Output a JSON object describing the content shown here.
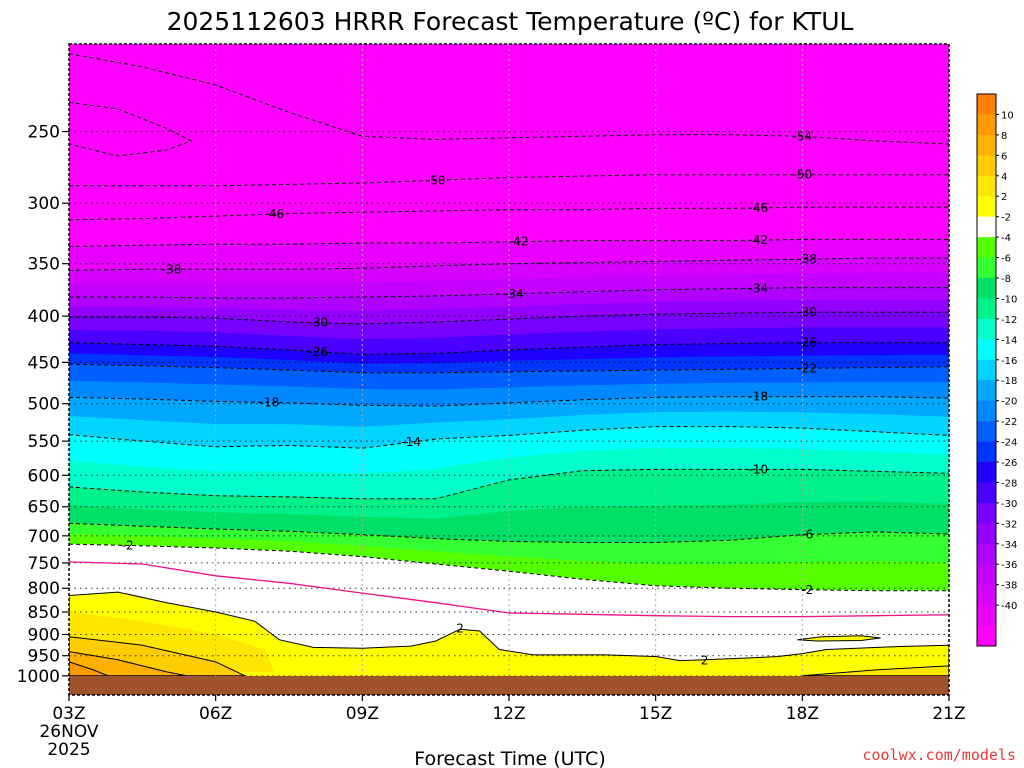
{
  "colors": {
    "m40": "#ff00ff",
    "m38": "#e800ff",
    "m36": "#d600ff",
    "m34": "#c400ff",
    "m32": "#b000ff",
    "m30": "#9400ff",
    "m28": "#7800ff",
    "m26": "#4a00ff",
    "m24": "#1e00ff",
    "m22": "#0034ff",
    "m20": "#0060ff",
    "m18": "#0088ff",
    "m16": "#00a8ff",
    "m14": "#00d4ff",
    "m12": "#00ffff",
    "m10": "#00ffcc",
    "m8": "#00f08a",
    "m6": "#00e066",
    "m4": "#33ff33",
    "m2": "#55ff00",
    "zero": "#ffffff",
    "p2": "#ffff00",
    "p4": "#ffe600",
    "p6": "#ffcc00",
    "p8": "#ffb000",
    "p10": "#ff9a00",
    "p12": "#ff8000",
    "ground": "#a0522d",
    "freezing": "#ee1188",
    "credit": "#e43b3b"
  },
  "chart_data": {
    "type": "heatmap",
    "title": "2025112603 HRRR Forecast Temperature (ºC) for KTUL",
    "xlabel": "Forecast Time (UTC)",
    "ylabel": "",
    "credit": "coolwx.com/models",
    "x_ticks": [
      "03Z",
      "06Z",
      "09Z",
      "12Z",
      "15Z",
      "18Z",
      "21Z"
    ],
    "x_subticks": [
      "26NOV",
      "2025"
    ],
    "x_hours": [
      3,
      6,
      9,
      12,
      15,
      18,
      21
    ],
    "xlim": [
      3,
      21
    ],
    "y_levels": [
      "250",
      "300",
      "350",
      "400",
      "450",
      "500",
      "550",
      "600",
      "650",
      "700",
      "750",
      "800",
      "850",
      "900",
      "950",
      "1000"
    ],
    "y_values": [
      250,
      300,
      350,
      400,
      450,
      500,
      550,
      600,
      650,
      700,
      750,
      800,
      850,
      900,
      950,
      1000
    ],
    "ylim": [
      200,
      1050
    ],
    "y_scale": "log",
    "colorbar_labels": [
      "10",
      "8",
      "6",
      "4",
      "2",
      "-2",
      "-4",
      "-6",
      "-8",
      "-10",
      "-12",
      "-14",
      "-16",
      "-18",
      "-20",
      "-22",
      "-24",
      "-26",
      "-28",
      "-30",
      "-32",
      "-34",
      "-36",
      "-38",
      "-40"
    ],
    "colorbar_keys": [
      "p12",
      "p10",
      "p8",
      "p6",
      "p4",
      "p2",
      "zero",
      "m2",
      "m4",
      "m6",
      "m8",
      "m10",
      "m12",
      "m14",
      "m16",
      "m18",
      "m20",
      "m22",
      "m24",
      "m26",
      "m28",
      "m30",
      "m32",
      "m34",
      "m36",
      "m38",
      "m40"
    ],
    "time_hours": [
      3,
      4.5,
      6,
      7.5,
      9,
      10.5,
      12,
      13.5,
      15,
      16.5,
      18,
      19.5,
      21
    ],
    "isotherms": [
      {
        "t": -54,
        "p": [
          205,
          212,
          222,
          238,
          253,
          255,
          254,
          253,
          252,
          252,
          253,
          256,
          258
        ],
        "labels": [
          {
            "x": 18,
            "text": "-54"
          }
        ]
      },
      {
        "t": -50,
        "p": [
          287,
          287,
          287,
          286,
          285,
          283,
          281,
          280,
          279,
          279,
          279,
          279,
          279
        ],
        "labels": [
          {
            "x": 10.5,
            "text": "-50"
          },
          {
            "x": 18,
            "text": "-50"
          }
        ]
      },
      {
        "t": -46,
        "p": [
          313,
          312,
          310,
          308,
          307,
          306,
          305,
          305,
          304,
          304,
          303,
          303,
          303
        ],
        "labels": [
          {
            "x": 7.2,
            "text": "-46"
          },
          {
            "x": 17.1,
            "text": "-46"
          }
        ]
      },
      {
        "t": -42,
        "p": [
          335,
          334,
          333,
          333,
          332,
          332,
          331,
          330,
          330,
          330,
          329,
          329,
          329
        ],
        "labels": [
          {
            "x": 12.2,
            "text": "-42"
          },
          {
            "x": 17.1,
            "text": "-42"
          }
        ]
      },
      {
        "t": -38,
        "p": [
          356,
          355,
          355,
          355,
          354,
          352,
          350,
          349,
          348,
          347,
          346,
          345,
          345
        ],
        "labels": [
          {
            "x": 5.1,
            "text": "-38"
          },
          {
            "x": 18.1,
            "text": "-38"
          }
        ]
      },
      {
        "t": -34,
        "p": [
          381,
          381,
          382,
          382,
          381,
          380,
          378,
          376,
          374,
          373,
          372,
          372,
          372
        ],
        "labels": [
          {
            "x": 12.1,
            "text": "-34"
          },
          {
            "x": 17.1,
            "text": "-34"
          }
        ]
      },
      {
        "t": -30,
        "p": [
          401,
          401,
          402,
          406,
          408,
          406,
          403,
          400,
          398,
          397,
          396,
          396,
          396
        ],
        "labels": [
          {
            "x": 8.1,
            "text": "-30"
          },
          {
            "x": 18.1,
            "text": "-30"
          }
        ]
      },
      {
        "t": -26,
        "p": [
          428,
          430,
          432,
          436,
          441,
          440,
          436,
          433,
          430,
          429,
          428,
          428,
          428
        ],
        "labels": [
          {
            "x": 8.1,
            "text": "-26"
          },
          {
            "x": 18.1,
            "text": "-26"
          }
        ]
      },
      {
        "t": -22,
        "p": [
          452,
          454,
          456,
          459,
          462,
          462,
          461,
          460,
          459,
          458,
          457,
          456,
          455
        ],
        "labels": [
          {
            "x": 18.1,
            "text": "-22"
          }
        ]
      },
      {
        "t": -18,
        "p": [
          492,
          494,
          497,
          499,
          502,
          503,
          499,
          495,
          492,
          491,
          491,
          491,
          493
        ],
        "labels": [
          {
            "x": 7.1,
            "text": "-18"
          },
          {
            "x": 17.1,
            "text": "-18"
          }
        ]
      },
      {
        "t": -14,
        "p": [
          541,
          550,
          558,
          556,
          560,
          547,
          542,
          535,
          530,
          530,
          532,
          537,
          542
        ],
        "labels": [
          {
            "x": 10,
            "text": "-14"
          }
        ]
      },
      {
        "t": -10,
        "p": [
          618,
          626,
          632,
          634,
          637,
          637,
          607,
          593,
          591,
          591,
          591,
          594,
          597
        ],
        "labels": [
          {
            "x": 17.1,
            "text": "-10"
          }
        ]
      },
      {
        "t": -6,
        "p": [
          678,
          683,
          688,
          692,
          698,
          705,
          710,
          712,
          712,
          708,
          698,
          693,
          697
        ],
        "labels": [
          {
            "x": 18.1,
            "text": "-6"
          }
        ]
      },
      {
        "t": -2,
        "p": [
          715,
          718,
          722,
          728,
          738,
          752,
          766,
          782,
          795,
          800,
          803,
          805,
          805
        ],
        "labels": [
          {
            "x": 4.2,
            "text": "-2"
          },
          {
            "x": 18.1,
            "text": "-2"
          }
        ]
      }
    ],
    "freezing_line": {
      "t": 0,
      "p": [
        748,
        752,
        775,
        790,
        810,
        830,
        852,
        855,
        858,
        860,
        860,
        858,
        856
      ]
    },
    "warm_contour": {
      "t": 2,
      "labels": [
        {
          "x": 11,
          "text": "2"
        },
        {
          "x": 16,
          "text": "2"
        }
      ]
    },
    "ground_level": 1000
  }
}
